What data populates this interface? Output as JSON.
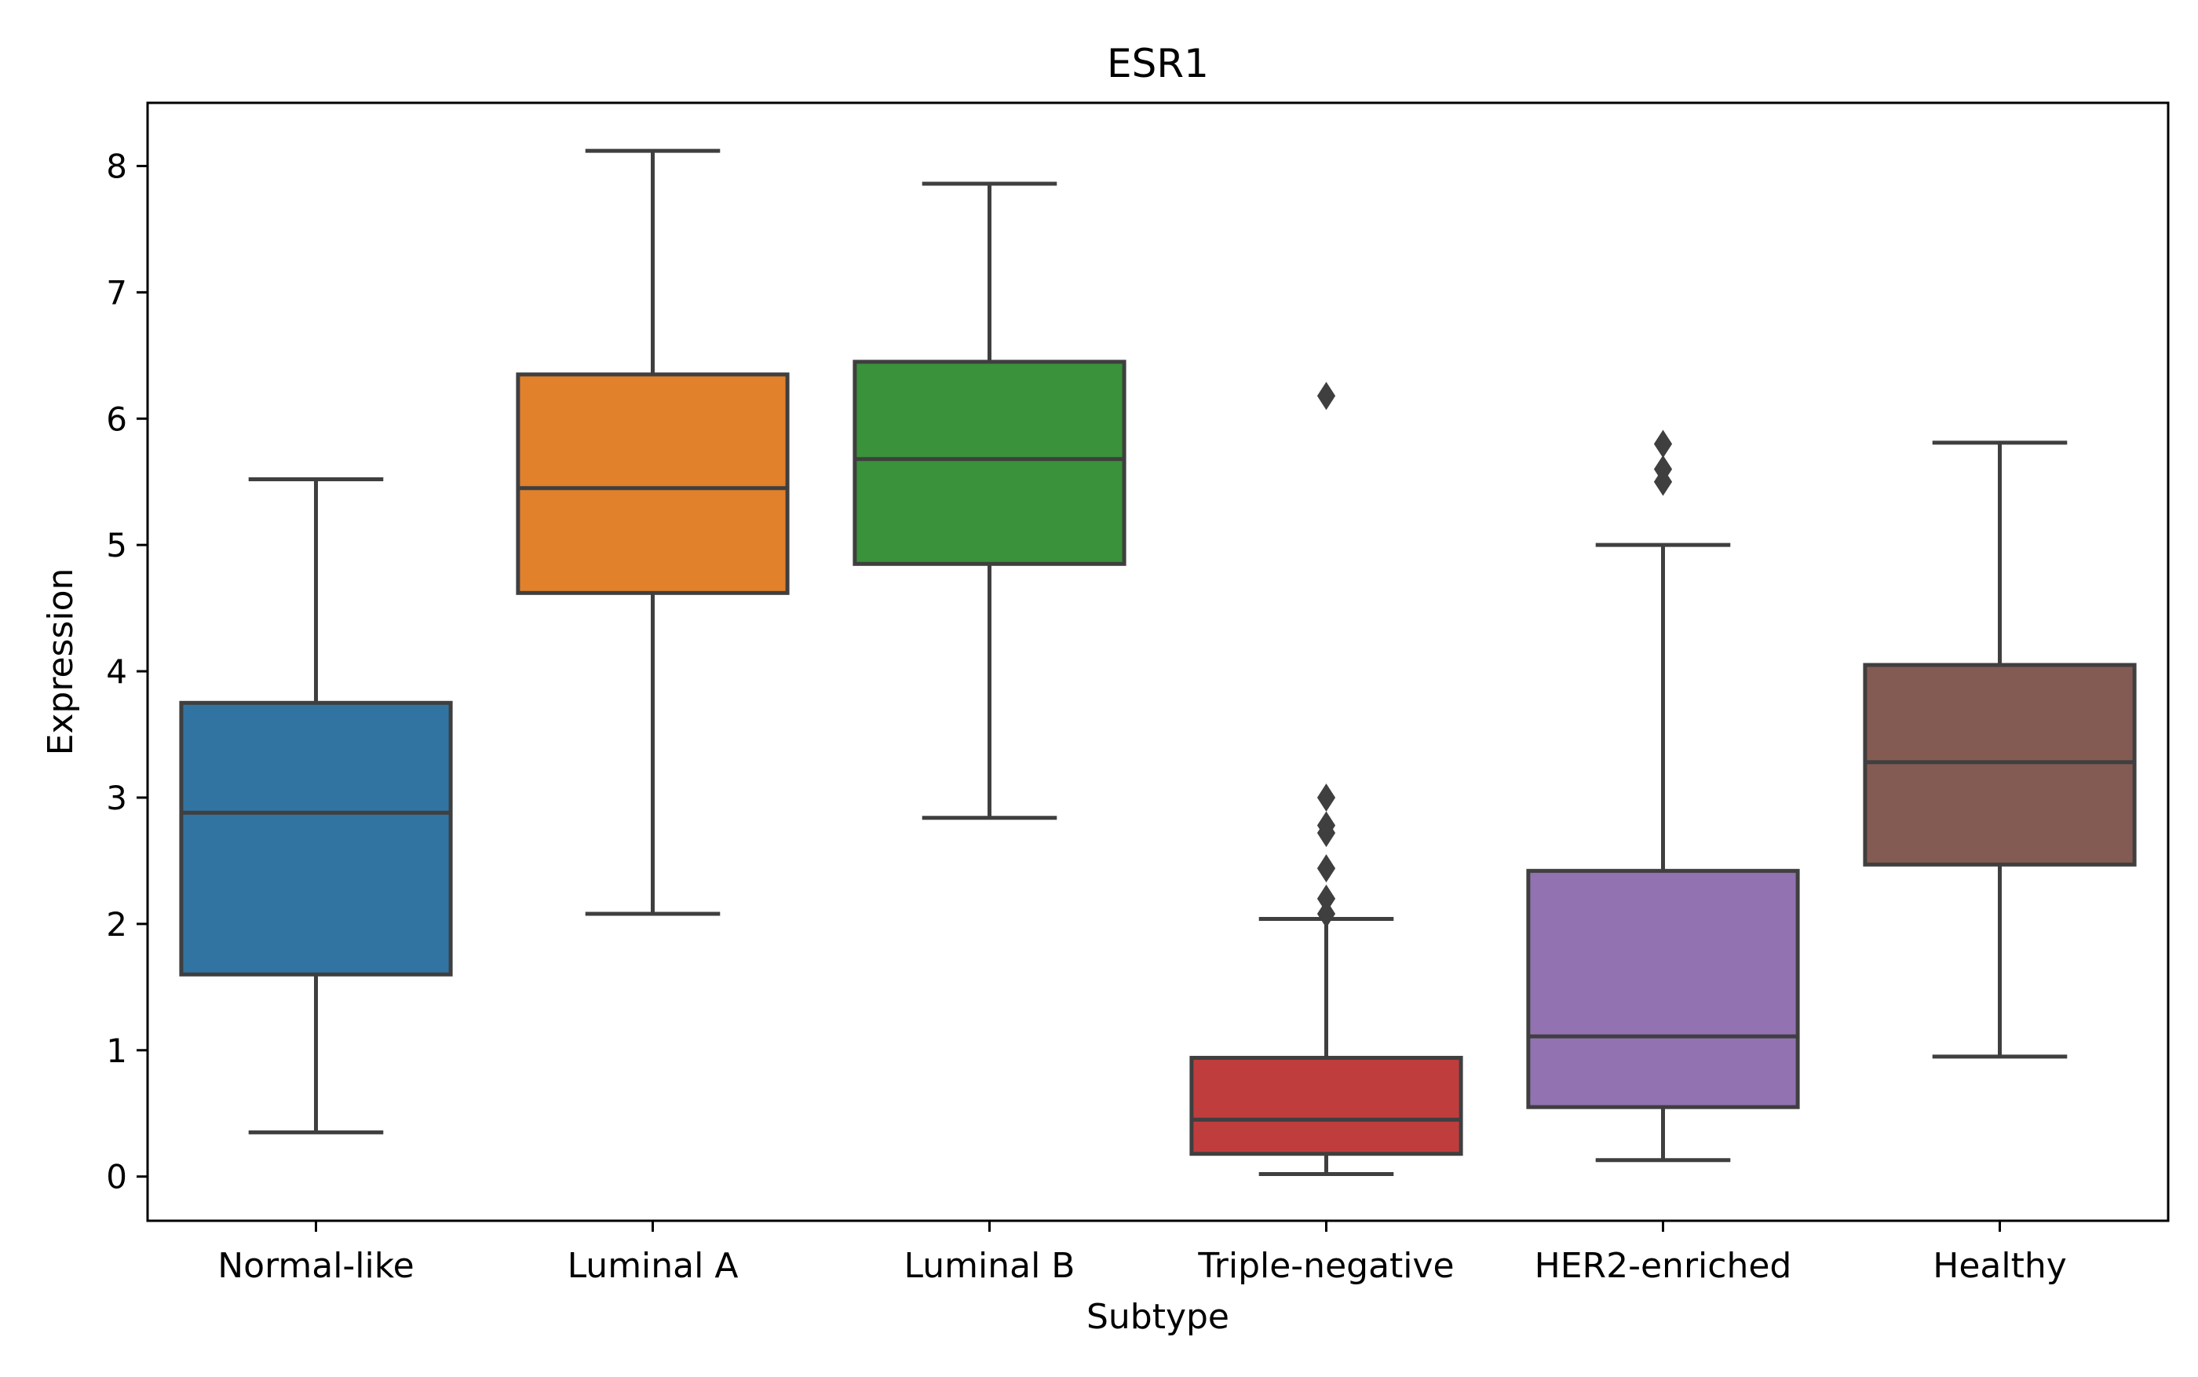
{
  "chart_data": {
    "type": "box",
    "title": "ESR1",
    "xlabel": "Subtype",
    "ylabel": "Expression",
    "ylim": [
      -0.35,
      8.5
    ],
    "yticks": [
      0,
      1,
      2,
      3,
      4,
      5,
      6,
      7,
      8
    ],
    "grid": false,
    "legend": "none",
    "categories": [
      "Normal-like",
      "Luminal A",
      "Luminal B",
      "Triple-negative",
      "HER2-enriched",
      "Healthy"
    ],
    "boxes": [
      {
        "category": "Normal-like",
        "whisker_low": 0.35,
        "q1": 1.6,
        "median": 2.88,
        "q3": 3.75,
        "whisker_high": 5.52,
        "outliers": [],
        "color": "#3274a1"
      },
      {
        "category": "Luminal A",
        "whisker_low": 2.08,
        "q1": 4.62,
        "median": 5.45,
        "q3": 6.35,
        "whisker_high": 8.12,
        "outliers": [],
        "color": "#e1812c"
      },
      {
        "category": "Luminal B",
        "whisker_low": 2.84,
        "q1": 4.85,
        "median": 5.68,
        "q3": 6.45,
        "whisker_high": 7.86,
        "outliers": [],
        "color": "#3a923a"
      },
      {
        "category": "Triple-negative",
        "whisker_low": 0.02,
        "q1": 0.18,
        "median": 0.45,
        "q3": 0.94,
        "whisker_high": 2.04,
        "outliers": [
          2.08,
          2.2,
          2.44,
          2.72,
          2.78,
          3.0,
          6.18
        ],
        "color": "#c03d3e"
      },
      {
        "category": "HER2-enriched",
        "whisker_low": 0.13,
        "q1": 0.55,
        "median": 1.11,
        "q3": 2.42,
        "whisker_high": 5.0,
        "outliers": [
          5.5,
          5.6,
          5.8
        ],
        "color": "#9372b2"
      },
      {
        "category": "Healthy",
        "whisker_low": 0.95,
        "q1": 2.47,
        "median": 3.28,
        "q3": 4.05,
        "whisker_high": 5.81,
        "outliers": [],
        "color": "#845b53"
      }
    ],
    "line_color": "#3f3f3f"
  }
}
